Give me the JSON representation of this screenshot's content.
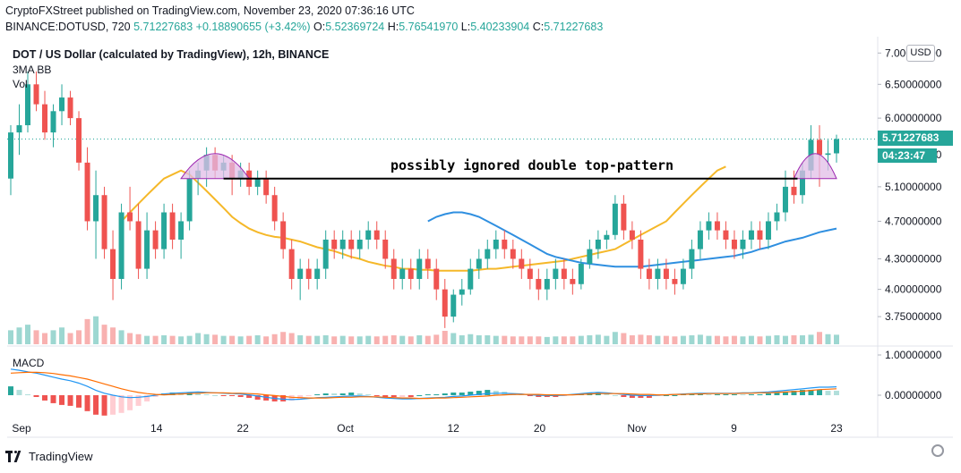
{
  "header": {
    "published": "CryptoFXStreet published on TradingView.com, November 23, 2020 07:36:16 UTC",
    "symbol": "BINANCE:DOTUSD, 720",
    "last": "5.71227683",
    "change": "+0.18890655 (+3.42%)",
    "o_label": "O:",
    "o_value": "5.52369724",
    "h_label": "H:",
    "h_value": "5.76541970",
    "l_label": "L:",
    "l_value": "5.40233904",
    "c_label": "C:",
    "c_value": "5.71227683"
  },
  "legend": {
    "title": "DOT / US Dollar (calculated by TradingView), 12h, BINANCE",
    "ma": "3MA BB",
    "vol": "Vol",
    "macd": "MACD"
  },
  "price_axis": {
    "currency": "USD",
    "ticks": [
      "7.00000000",
      "6.50000000",
      "6.00000000",
      "5.50000000",
      "5.10000000",
      "4.70000000",
      "4.30000000",
      "4.00000000",
      "3.75000000"
    ],
    "last_price": "5.71227683",
    "countdown": "04:23:47"
  },
  "macd_axis": {
    "ticks": [
      "1.00000000",
      "0.00000000"
    ]
  },
  "time_axis": {
    "labels": [
      "Sep",
      "14",
      "22",
      "Oct",
      "12",
      "20",
      "Nov",
      "9",
      "23"
    ]
  },
  "annotation": "possibly ignored double top-pattern",
  "footer": {
    "brand": "TradingView"
  },
  "colors": {
    "up": "#26a69a",
    "down": "#ef5350",
    "ma_fast": "#f5b829",
    "ma_slow": "#2f8fe0",
    "macd_line": "#2196f3",
    "signal_line": "#ff6d00",
    "pattern_fill": "#e1bee7"
  },
  "chart_data": {
    "type": "candlestick",
    "interval": "12h",
    "x_start": "2020-08-31",
    "x_end": "2020-11-23",
    "log_scale": true,
    "ylim": [
      3.55,
      7.2
    ],
    "ohlc": [
      [
        5.2,
        5.9,
        5.0,
        5.8
      ],
      [
        5.8,
        6.2,
        5.5,
        5.9
      ],
      [
        5.9,
        6.7,
        5.8,
        6.5
      ],
      [
        6.5,
        6.7,
        6.1,
        6.2
      ],
      [
        6.2,
        6.4,
        5.7,
        5.8
      ],
      [
        5.8,
        6.2,
        5.6,
        6.1
      ],
      [
        6.1,
        6.5,
        5.9,
        6.3
      ],
      [
        6.3,
        6.4,
        5.9,
        6.0
      ],
      [
        6.0,
        6.1,
        5.3,
        5.4
      ],
      [
        5.4,
        5.6,
        4.6,
        4.7
      ],
      [
        4.7,
        5.3,
        4.3,
        5.0
      ],
      [
        5.0,
        5.1,
        4.3,
        4.4
      ],
      [
        4.4,
        4.6,
        3.9,
        4.1
      ],
      [
        4.1,
        4.9,
        4.0,
        4.8
      ],
      [
        4.8,
        5.1,
        4.6,
        4.7
      ],
      [
        4.7,
        4.9,
        4.1,
        4.2
      ],
      [
        4.2,
        4.8,
        4.1,
        4.6
      ],
      [
        4.6,
        4.7,
        4.3,
        4.4
      ],
      [
        4.4,
        4.9,
        4.3,
        4.8
      ],
      [
        4.8,
        4.9,
        4.4,
        4.5
      ],
      [
        4.5,
        4.8,
        4.3,
        4.7
      ],
      [
        4.7,
        5.3,
        4.6,
        5.2
      ],
      [
        5.2,
        5.4,
        5.0,
        5.3
      ],
      [
        5.3,
        5.6,
        5.1,
        5.5
      ],
      [
        5.5,
        5.6,
        5.2,
        5.3
      ],
      [
        5.3,
        5.5,
        5.2,
        5.4
      ],
      [
        5.4,
        5.5,
        5.0,
        5.2
      ],
      [
        5.2,
        5.4,
        5.1,
        5.3
      ],
      [
        5.3,
        5.4,
        5.0,
        5.1
      ],
      [
        5.1,
        5.3,
        5.0,
        5.2
      ],
      [
        5.2,
        5.3,
        4.9,
        5.0
      ],
      [
        5.0,
        5.1,
        4.6,
        4.7
      ],
      [
        4.7,
        4.8,
        4.3,
        4.4
      ],
      [
        4.4,
        4.5,
        4.0,
        4.1
      ],
      [
        4.1,
        4.3,
        3.9,
        4.2
      ],
      [
        4.2,
        4.3,
        4.0,
        4.1
      ],
      [
        4.1,
        4.3,
        4.0,
        4.2
      ],
      [
        4.2,
        4.6,
        4.1,
        4.5
      ],
      [
        4.5,
        4.6,
        4.3,
        4.4
      ],
      [
        4.4,
        4.6,
        4.3,
        4.5
      ],
      [
        4.5,
        4.6,
        4.3,
        4.4
      ],
      [
        4.4,
        4.6,
        4.3,
        4.5
      ],
      [
        4.5,
        4.7,
        4.4,
        4.6
      ],
      [
        4.6,
        4.7,
        4.4,
        4.5
      ],
      [
        4.5,
        4.6,
        4.2,
        4.3
      ],
      [
        4.3,
        4.4,
        4.0,
        4.1
      ],
      [
        4.1,
        4.3,
        4.0,
        4.2
      ],
      [
        4.2,
        4.3,
        4.0,
        4.1
      ],
      [
        4.1,
        4.4,
        4.0,
        4.3
      ],
      [
        4.3,
        4.4,
        4.1,
        4.2
      ],
      [
        4.2,
        4.3,
        3.9,
        4.0
      ],
      [
        4.0,
        4.1,
        3.65,
        3.75
      ],
      [
        3.75,
        4.0,
        3.7,
        3.95
      ],
      [
        3.95,
        4.1,
        3.85,
        4.0
      ],
      [
        4.0,
        4.3,
        3.95,
        4.2
      ],
      [
        4.2,
        4.4,
        4.1,
        4.3
      ],
      [
        4.3,
        4.5,
        4.2,
        4.4
      ],
      [
        4.4,
        4.6,
        4.3,
        4.5
      ],
      [
        4.5,
        4.6,
        4.3,
        4.4
      ],
      [
        4.4,
        4.5,
        4.2,
        4.3
      ],
      [
        4.3,
        4.4,
        4.1,
        4.2
      ],
      [
        4.2,
        4.3,
        4.0,
        4.1
      ],
      [
        4.1,
        4.2,
        3.9,
        4.0
      ],
      [
        4.0,
        4.2,
        3.9,
        4.1
      ],
      [
        4.1,
        4.3,
        4.0,
        4.2
      ],
      [
        4.2,
        4.3,
        4.0,
        4.1
      ],
      [
        4.1,
        4.2,
        3.95,
        4.05
      ],
      [
        4.05,
        4.3,
        4.0,
        4.25
      ],
      [
        4.25,
        4.5,
        4.2,
        4.4
      ],
      [
        4.4,
        4.6,
        4.3,
        4.5
      ],
      [
        4.5,
        4.6,
        4.4,
        4.55
      ],
      [
        4.55,
        5.0,
        4.5,
        4.9
      ],
      [
        4.9,
        5.0,
        4.5,
        4.6
      ],
      [
        4.6,
        4.7,
        4.4,
        4.5
      ],
      [
        4.5,
        4.6,
        4.1,
        4.2
      ],
      [
        4.2,
        4.3,
        4.0,
        4.1
      ],
      [
        4.1,
        4.3,
        4.0,
        4.2
      ],
      [
        4.2,
        4.3,
        4.0,
        4.1
      ],
      [
        4.1,
        4.2,
        3.95,
        4.05
      ],
      [
        4.05,
        4.3,
        4.0,
        4.2
      ],
      [
        4.2,
        4.5,
        4.1,
        4.4
      ],
      [
        4.4,
        4.7,
        4.3,
        4.6
      ],
      [
        4.6,
        4.8,
        4.5,
        4.7
      ],
      [
        4.7,
        4.8,
        4.5,
        4.6
      ],
      [
        4.6,
        4.7,
        4.4,
        4.5
      ],
      [
        4.5,
        4.6,
        4.3,
        4.4
      ],
      [
        4.4,
        4.6,
        4.3,
        4.5
      ],
      [
        4.5,
        4.7,
        4.4,
        4.6
      ],
      [
        4.6,
        4.7,
        4.4,
        4.5
      ],
      [
        4.5,
        4.8,
        4.4,
        4.7
      ],
      [
        4.7,
        4.9,
        4.6,
        4.8
      ],
      [
        4.8,
        5.3,
        4.7,
        5.1
      ],
      [
        5.1,
        5.3,
        4.9,
        5.0
      ],
      [
        5.0,
        5.4,
        4.9,
        5.3
      ],
      [
        5.3,
        5.9,
        5.2,
        5.7
      ],
      [
        5.7,
        5.9,
        5.1,
        5.5
      ],
      [
        5.5,
        5.7,
        5.3,
        5.52
      ],
      [
        5.52,
        5.77,
        5.4,
        5.71
      ]
    ],
    "ma_fast": {
      "start_index": 13,
      "values": [
        4.7,
        4.8,
        4.9,
        5.0,
        5.1,
        5.2,
        5.25,
        5.3,
        5.25,
        5.15,
        5.05,
        4.95,
        4.85,
        4.75,
        4.68,
        4.62,
        4.58,
        4.55,
        4.53,
        4.52,
        4.5,
        4.48,
        4.45,
        4.42,
        4.4,
        4.38,
        4.35,
        4.32,
        4.3,
        4.27,
        4.25,
        4.23,
        4.22,
        4.2,
        4.2,
        4.19,
        4.19,
        4.18,
        4.18,
        4.18,
        4.18,
        4.18,
        4.19,
        4.2,
        4.2,
        4.21,
        4.22,
        4.23,
        4.24,
        4.25,
        4.26,
        4.27,
        4.28,
        4.3,
        4.32,
        4.34,
        4.36,
        4.38,
        4.4,
        4.45,
        4.5,
        4.55,
        4.6,
        4.65,
        4.7,
        4.8,
        4.9,
        5.0,
        5.1,
        5.2,
        5.3,
        5.35
      ]
    },
    "ma_slow": {
      "start_index": 49,
      "values": [
        4.7,
        4.75,
        4.78,
        4.8,
        4.8,
        4.78,
        4.75,
        4.7,
        4.65,
        4.6,
        4.55,
        4.5,
        4.45,
        4.4,
        4.35,
        4.32,
        4.3,
        4.28,
        4.26,
        4.25,
        4.24,
        4.23,
        4.22,
        4.22,
        4.22,
        4.22,
        4.23,
        4.24,
        4.25,
        4.26,
        4.27,
        4.28,
        4.29,
        4.3,
        4.31,
        4.32,
        4.33,
        4.35,
        4.37,
        4.4,
        4.42,
        4.45,
        4.48,
        4.5,
        4.52,
        4.55,
        4.58,
        4.6,
        4.62
      ]
    },
    "pattern_level": 5.2,
    "volume": [
      2.5,
      3.0,
      3.5,
      2.5,
      2.0,
      2.5,
      3.0,
      2.0,
      2.5,
      4.5,
      5.0,
      3.5,
      3.0,
      2.5,
      2.0,
      1.8,
      1.5,
      1.5,
      1.6,
      1.5,
      1.4,
      1.5,
      2.0,
      1.8,
      1.7,
      1.5,
      1.5,
      1.4,
      1.5,
      1.6,
      1.4,
      1.8,
      2.2,
      2.0,
      1.6,
      1.5,
      1.5,
      1.6,
      1.4,
      1.5,
      1.4,
      1.4,
      1.5,
      1.4,
      1.5,
      1.6,
      1.5,
      1.4,
      1.6,
      1.5,
      1.7,
      2.4,
      2.0,
      1.6,
      1.8,
      1.6,
      1.6,
      1.5,
      1.5,
      1.4,
      1.4,
      1.4,
      1.4,
      1.3,
      1.4,
      1.4,
      1.4,
      1.5,
      1.6,
      1.7,
      1.5,
      2.2,
      2.0,
      1.6,
      1.7,
      1.6,
      1.5,
      1.5,
      1.4,
      1.5,
      1.6,
      1.7,
      1.5,
      1.5,
      1.4,
      1.5,
      1.4,
      1.5,
      1.4,
      1.5,
      1.6,
      1.5,
      1.6,
      1.6,
      1.7,
      2.2,
      1.8,
      1.7
    ],
    "macd": [
      0.65,
      0.62,
      0.58,
      0.55,
      0.5,
      0.45,
      0.4,
      0.36,
      0.3,
      0.22,
      0.12,
      0.05,
      0.0,
      -0.04,
      -0.06,
      -0.05,
      -0.03,
      0.0,
      0.03,
      0.05,
      0.06,
      0.07,
      0.08,
      0.07,
      0.06,
      0.05,
      0.04,
      0.03,
      0.01,
      -0.02,
      -0.05,
      -0.08,
      -0.1,
      -0.11,
      -0.1,
      -0.08,
      -0.06,
      -0.05,
      -0.04,
      -0.03,
      -0.02,
      -0.02,
      -0.03,
      -0.05,
      -0.07,
      -0.08,
      -0.09,
      -0.09,
      -0.08,
      -0.07,
      -0.06,
      -0.05,
      -0.03,
      -0.02,
      0.0,
      0.02,
      0.04,
      0.05,
      0.05,
      0.04,
      0.03,
      0.01,
      0.0,
      -0.01,
      -0.01,
      0.0,
      0.02,
      0.04,
      0.06,
      0.07,
      0.06,
      0.04,
      0.02,
      0.0,
      -0.01,
      -0.01,
      0.0,
      0.01,
      0.02,
      0.03,
      0.04,
      0.05,
      0.05,
      0.05,
      0.05,
      0.05,
      0.06,
      0.06,
      0.07,
      0.08,
      0.1,
      0.12,
      0.14,
      0.16,
      0.18,
      0.2,
      0.2,
      0.21
    ],
    "signal": [
      0.55,
      0.56,
      0.57,
      0.57,
      0.56,
      0.54,
      0.51,
      0.48,
      0.44,
      0.4,
      0.34,
      0.28,
      0.22,
      0.16,
      0.11,
      0.07,
      0.04,
      0.02,
      0.01,
      0.02,
      0.03,
      0.04,
      0.05,
      0.06,
      0.06,
      0.06,
      0.05,
      0.05,
      0.04,
      0.03,
      0.01,
      -0.01,
      -0.03,
      -0.05,
      -0.06,
      -0.07,
      -0.07,
      -0.07,
      -0.06,
      -0.05,
      -0.05,
      -0.04,
      -0.04,
      -0.04,
      -0.05,
      -0.06,
      -0.07,
      -0.07,
      -0.08,
      -0.08,
      -0.07,
      -0.07,
      -0.06,
      -0.05,
      -0.04,
      -0.03,
      -0.02,
      0.0,
      0.01,
      0.02,
      0.02,
      0.02,
      0.02,
      0.01,
      0.01,
      0.01,
      0.01,
      0.02,
      0.03,
      0.04,
      0.04,
      0.04,
      0.04,
      0.03,
      0.02,
      0.02,
      0.01,
      0.01,
      0.02,
      0.02,
      0.03,
      0.03,
      0.04,
      0.04,
      0.04,
      0.04,
      0.05,
      0.05,
      0.06,
      0.06,
      0.07,
      0.08,
      0.09,
      0.1,
      0.12,
      0.14,
      0.15,
      0.16
    ],
    "macd_ylim": [
      -0.4,
      1.2
    ]
  }
}
